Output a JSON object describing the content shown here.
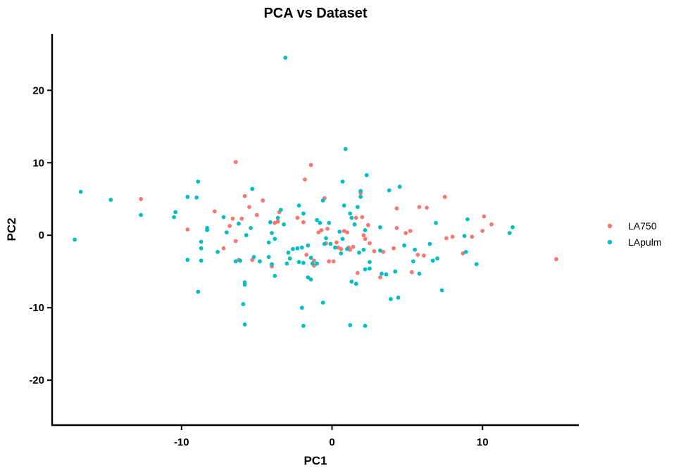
{
  "chart_data": {
    "type": "scatter",
    "title": "PCA vs Dataset",
    "xlabel": "PC1",
    "ylabel": "PC2",
    "xlim": [
      -18.6,
      16.4
    ],
    "ylim": [
      -26.2,
      27.8
    ],
    "xticks": [
      -10,
      0,
      10
    ],
    "yticks": [
      -20,
      -10,
      0,
      10,
      20
    ],
    "grid": false,
    "legend": "right",
    "series": [
      {
        "name": "LA750",
        "color": "#F8766D",
        "points": [
          [
            -12.7,
            5.0
          ],
          [
            -9.6,
            0.8
          ],
          [
            -7.8,
            3.3
          ],
          [
            -7.2,
            -1.8
          ],
          [
            -6.8,
            1.3
          ],
          [
            -6.6,
            2.3
          ],
          [
            -6.4,
            -0.8
          ],
          [
            -6.4,
            10.1
          ],
          [
            -6.2,
            -3.4
          ],
          [
            -6.0,
            2.3
          ],
          [
            -5.8,
            5.4
          ],
          [
            -5.5,
            3.9
          ],
          [
            -5.3,
            -3.4
          ],
          [
            -5.0,
            2.8
          ],
          [
            -4.6,
            4.8
          ],
          [
            -4.0,
            -4.3
          ],
          [
            -3.8,
            1.7
          ],
          [
            -3.6,
            1.9
          ],
          [
            -3.5,
            3.2
          ],
          [
            -2.3,
            2.4
          ],
          [
            -1.9,
            1.8
          ],
          [
            -1.8,
            7.7
          ],
          [
            -1.7,
            -2.7
          ],
          [
            -1.4,
            9.7
          ],
          [
            -1.2,
            -4.2
          ],
          [
            -1.2,
            -3.5
          ],
          [
            -0.9,
            0.4
          ],
          [
            -0.7,
            0.7
          ],
          [
            -0.5,
            5.1
          ],
          [
            -0.4,
            -1.1
          ],
          [
            -0.3,
            0.9
          ],
          [
            -0.2,
            -3.6
          ],
          [
            0.1,
            -3.6
          ],
          [
            0.3,
            -1.0
          ],
          [
            0.4,
            -1.7
          ],
          [
            0.6,
            -1.9
          ],
          [
            0.8,
            0.6
          ],
          [
            1.0,
            0.4
          ],
          [
            1.1,
            -1.7
          ],
          [
            1.2,
            -2.0
          ],
          [
            1.4,
            -1.6
          ],
          [
            1.6,
            2.4
          ],
          [
            1.7,
            -5.2
          ],
          [
            1.9,
            5.8
          ],
          [
            2.0,
            2.5
          ],
          [
            2.1,
            0.0
          ],
          [
            2.2,
            -0.5
          ],
          [
            2.4,
            1.4
          ],
          [
            2.5,
            -1.1
          ],
          [
            2.8,
            -2.2
          ],
          [
            3.2,
            -5.8
          ],
          [
            3.4,
            -2.3
          ],
          [
            4.1,
            -1.8
          ],
          [
            4.3,
            1.0
          ],
          [
            4.3,
            3.7
          ],
          [
            4.9,
            0.3
          ],
          [
            5.2,
            0.6
          ],
          [
            5.3,
            -5.1
          ],
          [
            5.7,
            -2.7
          ],
          [
            5.8,
            3.9
          ],
          [
            6.1,
            -2.8
          ],
          [
            6.3,
            3.8
          ],
          [
            7.5,
            5.3
          ],
          [
            7.6,
            -0.4
          ],
          [
            8.0,
            -0.2
          ],
          [
            8.7,
            -2.5
          ],
          [
            9.3,
            -0.2
          ],
          [
            10.0,
            0.6
          ],
          [
            10.1,
            2.6
          ],
          [
            10.6,
            1.5
          ],
          [
            14.9,
            -3.3
          ]
        ]
      },
      {
        "name": "LApulm",
        "color": "#00BFC4",
        "points": [
          [
            -17.1,
            -0.6
          ],
          [
            -16.7,
            6.0
          ],
          [
            -14.7,
            4.9
          ],
          [
            -12.7,
            2.8
          ],
          [
            -10.5,
            2.5
          ],
          [
            -10.4,
            3.2
          ],
          [
            -9.6,
            5.3
          ],
          [
            -9.6,
            -3.4
          ],
          [
            -9.0,
            5.2
          ],
          [
            -8.9,
            7.4
          ],
          [
            -8.9,
            -7.8
          ],
          [
            -8.7,
            -0.9
          ],
          [
            -8.7,
            -1.8
          ],
          [
            -8.7,
            -3.5
          ],
          [
            -8.3,
            0.7
          ],
          [
            -8.3,
            1.0
          ],
          [
            -7.6,
            -2.3
          ],
          [
            -7.2,
            2.5
          ],
          [
            -7.0,
            0.4
          ],
          [
            -6.4,
            -3.6
          ],
          [
            -6.2,
            1.6
          ],
          [
            -6.1,
            -3.5
          ],
          [
            -5.9,
            -9.5
          ],
          [
            -5.8,
            -12.3
          ],
          [
            -5.8,
            -6.5
          ],
          [
            -5.8,
            -6.8
          ],
          [
            -5.7,
            0.0
          ],
          [
            -5.4,
            1.0
          ],
          [
            -5.3,
            6.4
          ],
          [
            -5.2,
            -3.0
          ],
          [
            -4.8,
            -3.6
          ],
          [
            -4.2,
            -1.0
          ],
          [
            -4.2,
            -3.0
          ],
          [
            -4.1,
            1.8
          ],
          [
            -4.0,
            -4.0
          ],
          [
            -4.0,
            0.3
          ],
          [
            -3.8,
            -5.6
          ],
          [
            -3.8,
            -0.5
          ],
          [
            -3.6,
            2.4
          ],
          [
            -3.4,
            3.5
          ],
          [
            -3.2,
            1.5
          ],
          [
            -3.1,
            24.5
          ],
          [
            -3.0,
            -3.9
          ],
          [
            -2.9,
            -2.4
          ],
          [
            -2.8,
            -3.2
          ],
          [
            -2.6,
            -1.9
          ],
          [
            -2.3,
            -1.8
          ],
          [
            -2.2,
            -3.7
          ],
          [
            -2.2,
            4.1
          ],
          [
            -2.0,
            -1.7
          ],
          [
            -2.0,
            -10.0
          ],
          [
            -1.9,
            3.0
          ],
          [
            -1.9,
            -12.5
          ],
          [
            -1.9,
            -3.8
          ],
          [
            -1.6,
            -1.4
          ],
          [
            -1.6,
            -5.8
          ],
          [
            -1.4,
            -6.1
          ],
          [
            -1.4,
            -3.1
          ],
          [
            -1.3,
            -3.9
          ],
          [
            -1.0,
            -3.9
          ],
          [
            -1.0,
            2.1
          ],
          [
            -0.8,
            1.7
          ],
          [
            -0.6,
            -9.3
          ],
          [
            -0.6,
            4.8
          ],
          [
            -0.5,
            -1.2
          ],
          [
            -0.4,
            -0.4
          ],
          [
            -0.2,
            1.7
          ],
          [
            -0.1,
            -1.2
          ],
          [
            0.2,
            -1.7
          ],
          [
            0.5,
            0.5
          ],
          [
            0.6,
            -2.5
          ],
          [
            0.7,
            -0.5
          ],
          [
            0.7,
            7.4
          ],
          [
            0.8,
            4.1
          ],
          [
            0.9,
            11.9
          ],
          [
            1.0,
            -1.9
          ],
          [
            1.2,
            -12.4
          ],
          [
            1.2,
            3.0
          ],
          [
            1.3,
            -6.4
          ],
          [
            1.3,
            2.4
          ],
          [
            1.5,
            1.5
          ],
          [
            1.6,
            -6.7
          ],
          [
            1.7,
            3.9
          ],
          [
            1.8,
            -2.4
          ],
          [
            1.9,
            6.1
          ],
          [
            1.9,
            5.3
          ],
          [
            2.1,
            -2.0
          ],
          [
            2.2,
            0.7
          ],
          [
            2.2,
            -12.5
          ],
          [
            2.2,
            -4.7
          ],
          [
            2.3,
            8.3
          ],
          [
            2.5,
            -4.6
          ],
          [
            2.5,
            -3.7
          ],
          [
            3.2,
            1.1
          ],
          [
            3.2,
            -2.1
          ],
          [
            3.3,
            -5.3
          ],
          [
            3.6,
            -5.4
          ],
          [
            3.8,
            6.2
          ],
          [
            3.9,
            -8.8
          ],
          [
            4.2,
            -5.0
          ],
          [
            4.4,
            -8.6
          ],
          [
            4.5,
            6.7
          ],
          [
            4.8,
            -1.4
          ],
          [
            5.4,
            -3.6
          ],
          [
            5.5,
            -2.0
          ],
          [
            5.8,
            -5.3
          ],
          [
            6.5,
            -1.2
          ],
          [
            6.7,
            -3.5
          ],
          [
            6.9,
            1.7
          ],
          [
            7.0,
            -3.2
          ],
          [
            7.3,
            -7.6
          ],
          [
            8.8,
            -0.1
          ],
          [
            8.9,
            -2.3
          ],
          [
            9.0,
            2.2
          ],
          [
            9.6,
            -4.0
          ],
          [
            11.8,
            0.3
          ],
          [
            12.0,
            1.1
          ]
        ]
      }
    ]
  }
}
